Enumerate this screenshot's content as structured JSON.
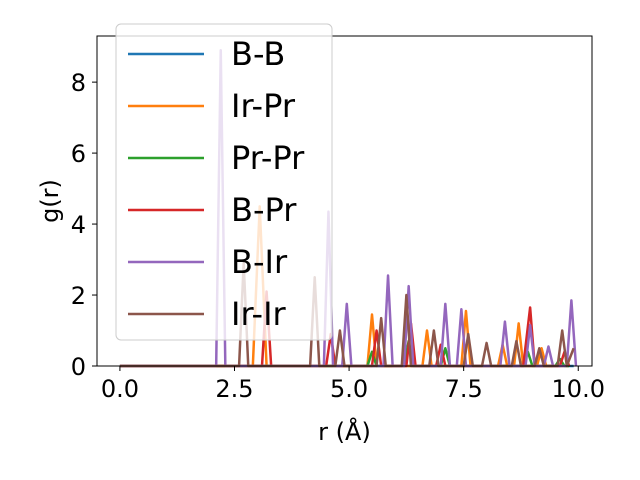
{
  "chart_data": {
    "type": "line",
    "xlabel": "r (Å)",
    "ylabel": "g(r)",
    "xlim": [
      -0.5,
      10.3
    ],
    "ylim": [
      0,
      9.3
    ],
    "xticks": [
      0.0,
      2.5,
      5.0,
      7.5,
      10.0
    ],
    "xtick_labels": [
      "0.0",
      "2.5",
      "5.0",
      "7.5",
      "10.0"
    ],
    "yticks": [
      0,
      2,
      4,
      6,
      8
    ],
    "ytick_labels": [
      "0",
      "2",
      "4",
      "6",
      "8"
    ],
    "grid": false,
    "legend_position": "upper-left",
    "series": [
      {
        "name": "B-B",
        "color": "#1f77b4",
        "x": [
          0,
          9.9
        ],
        "y": [
          0,
          0
        ]
      },
      {
        "name": "Ir-Pr",
        "color": "#ff7f0e",
        "x": [
          0,
          2.9,
          3.05,
          3.2,
          5.4,
          5.5,
          5.6,
          6.6,
          6.7,
          6.8,
          7.45,
          7.55,
          7.65,
          8.25,
          8.35,
          8.45,
          8.6,
          8.7,
          8.8,
          9.1,
          9.2,
          9.3,
          9.8
        ],
        "y": [
          0,
          0,
          4.5,
          0,
          0,
          1.45,
          0,
          0,
          1.0,
          0,
          0,
          1.55,
          0,
          0,
          0.6,
          0,
          0,
          1.2,
          0,
          0,
          0.5,
          0,
          0
        ]
      },
      {
        "name": "Pr-Pr",
        "color": "#2ca02c",
        "x": [
          0,
          5.4,
          5.5,
          5.6,
          6.2,
          6.3,
          6.4,
          7.0,
          7.1,
          7.2,
          8.8,
          8.9,
          9.0,
          9.5,
          9.6,
          9.7,
          9.8
        ],
        "y": [
          0,
          0,
          0.4,
          0,
          0,
          0.7,
          0,
          0,
          0.5,
          0,
          0,
          0.4,
          0,
          0,
          0.2,
          0,
          0
        ]
      },
      {
        "name": "B-Pr",
        "color": "#d62728",
        "x": [
          0,
          3.1,
          3.2,
          3.3,
          4.5,
          4.6,
          4.7,
          5.5,
          5.6,
          5.7,
          6.25,
          6.35,
          6.45,
          6.9,
          7.0,
          7.1,
          8.8,
          8.95,
          9.05,
          9.6,
          9.7,
          9.8
        ],
        "y": [
          0,
          0,
          2.1,
          0,
          0,
          0.9,
          0,
          0,
          1.0,
          0,
          0,
          1.2,
          0,
          0,
          0.6,
          0,
          0,
          1.65,
          0,
          0,
          0.4,
          0
        ]
      },
      {
        "name": "B-Ir",
        "color": "#9467bd",
        "x": [
          0,
          2.1,
          2.2,
          2.3,
          4.45,
          4.55,
          4.65,
          4.85,
          4.95,
          5.05,
          5.75,
          5.85,
          5.95,
          6.2,
          6.3,
          6.4,
          7.0,
          7.1,
          7.2,
          7.35,
          7.45,
          7.55,
          8.3,
          8.4,
          8.5,
          8.85,
          8.95,
          9.05,
          9.25,
          9.35,
          9.45,
          9.75,
          9.85,
          9.95
        ],
        "y": [
          0,
          0,
          8.9,
          0,
          0,
          4.35,
          0,
          0,
          1.75,
          0,
          0,
          2.55,
          0,
          0,
          2.25,
          0,
          0,
          1.75,
          0,
          0,
          1.6,
          0,
          0,
          1.25,
          0,
          0,
          1.15,
          0,
          0,
          0.55,
          0,
          0,
          1.85,
          0
        ]
      },
      {
        "name": "Ir-Ir",
        "color": "#8c564b",
        "x": [
          0,
          2.6,
          2.7,
          2.8,
          4.15,
          4.25,
          4.35,
          4.7,
          4.8,
          4.9,
          5.6,
          5.7,
          5.8,
          6.15,
          6.25,
          6.35,
          6.75,
          6.85,
          6.95,
          7.5,
          7.6,
          7.7,
          7.9,
          8.0,
          8.1,
          8.55,
          8.65,
          8.75,
          9.05,
          9.15,
          9.25,
          9.55,
          9.65,
          9.75,
          9.9
        ],
        "y": [
          0,
          0,
          2.9,
          0,
          0,
          2.5,
          0,
          0,
          1.0,
          0,
          0,
          1.35,
          0,
          0,
          2.0,
          0,
          0,
          1.0,
          0,
          0,
          0.9,
          0,
          0,
          0.65,
          0,
          0,
          0.7,
          0,
          0,
          0.5,
          0,
          0,
          1.0,
          0,
          0.5
        ]
      }
    ]
  }
}
